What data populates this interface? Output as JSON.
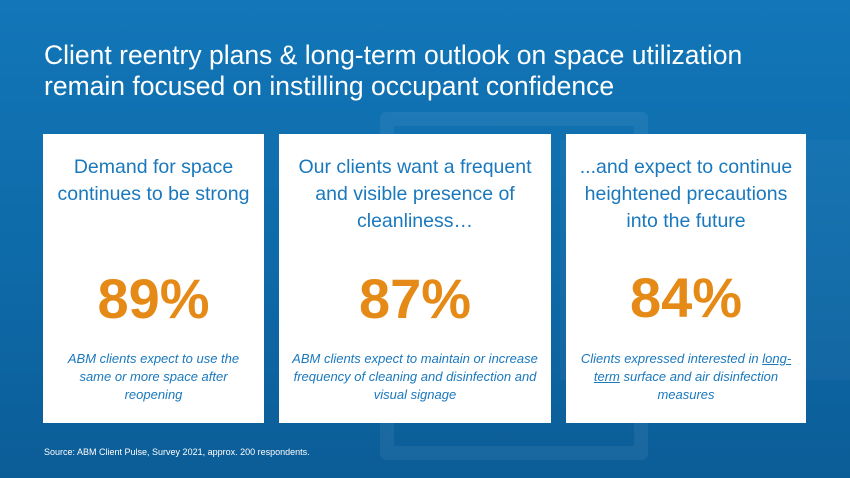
{
  "slide": {
    "title": "Client reentry plans & long-term outlook on space utilization remain focused on instilling occupant confidence",
    "source": "Source: ABM Client Pulse, Survey 2021, approx. 200 respondents."
  },
  "cards": [
    {
      "heading": "Demand for space continues to be strong",
      "stat": "89%",
      "description": "ABM clients expect to use the same or more space after reopening"
    },
    {
      "heading": "Our clients want a frequent and visible presence of cleanliness…",
      "stat": "87%",
      "description": "ABM clients expect to maintain or increase frequency of cleaning and disinfection and visual signage"
    },
    {
      "heading": "...and expect to continue heightened precautions into the future",
      "stat": "84%",
      "description_prefix": "Clients expressed interested in",
      "description_underlined": "long-term",
      "description_suffix": "surface and air disinfection measures"
    }
  ],
  "colors": {
    "background": "#0e6aa8",
    "heading_text": "#1a78bd",
    "stat_text": "#e58a17",
    "card": "#ffffff"
  }
}
